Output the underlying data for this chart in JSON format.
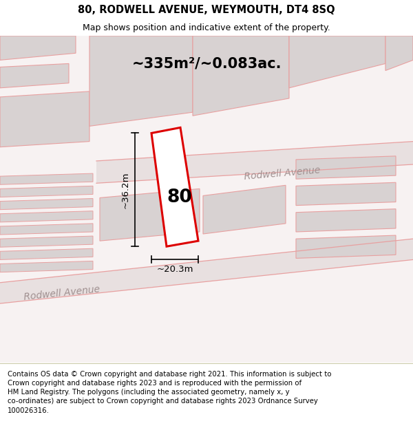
{
  "title": "80, RODWELL AVENUE, WEYMOUTH, DT4 8SQ",
  "subtitle": "Map shows position and indicative extent of the property.",
  "area_label": "~335m²/~0.083ac.",
  "property_number": "80",
  "dim_width": "~20.3m",
  "dim_height": "~36.2m",
  "road_label_1": "Rodwell Avenue",
  "road_label_2": "Rodwell Avenue",
  "footer": "Contains OS data © Crown copyright and database right 2021. This information is subject to\nCrown copyright and database rights 2023 and is reproduced with the permission of\nHM Land Registry. The polygons (including the associated geometry, namely x, y\nco-ordinates) are subject to Crown copyright and database rights 2023 Ordnance Survey\n100026316.",
  "map_bg": "#f7f2f2",
  "footer_bg": "#eeeee4",
  "pink": "#e8a0a0",
  "red_plot_color": "#dd0000",
  "plot_fill": "#ffffff",
  "building_fill": "#d8d2d2",
  "road_fill": "#e8e0e0",
  "title_fontsize": 10.5,
  "subtitle_fontsize": 9,
  "area_fontsize": 15,
  "num_fontsize": 19,
  "dim_fontsize": 9.5,
  "road_fontsize": 10,
  "footer_fontsize": 7.3
}
